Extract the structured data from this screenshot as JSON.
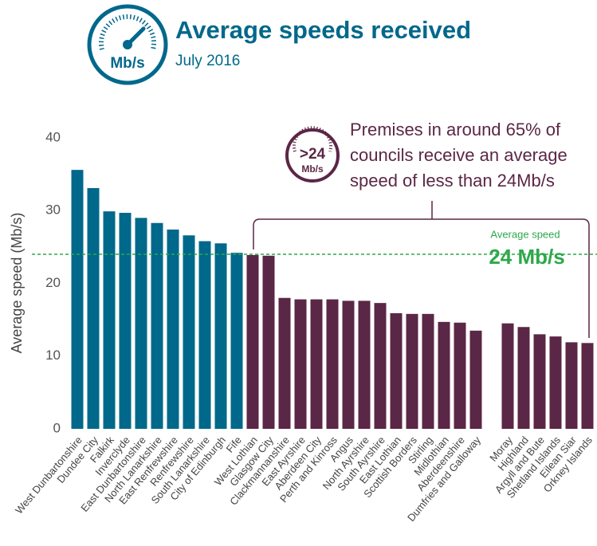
{
  "chart_data": {
    "type": "bar",
    "title": "Average speeds received",
    "subtitle": "July 2016",
    "header_icon_label": "Mb/s",
    "y_label": "Average speed (Mb/s)",
    "categories": [
      "West Dunbartonshire",
      "Dundee City",
      "Falkirk",
      "Inverclyde",
      "East Dunbartonshire",
      "North Lanarkshire",
      "East Renfrewshire",
      "Renfrewshire",
      "South Lanarkshire",
      "City of Edinburgh",
      "Fife",
      "West Lothian",
      "Glasgow City",
      "Clackmannanshire",
      "East Ayrshire",
      "Aberdeen City",
      "Perth and Kinross",
      "Angus",
      "North Ayrshire",
      "South Ayrshire",
      "East Lothian",
      "Scottish Borders",
      "Stirling",
      "Midlothian",
      "Aberdeenshire",
      "Dumfries and Galloway",
      null,
      "Moray",
      "Highland",
      "Argyll and Bute",
      "Shetland Islands",
      "Eilean Siar",
      "Orkney Islands"
    ],
    "values": [
      35.6,
      33.1,
      29.9,
      29.7,
      29.0,
      28.3,
      27.4,
      26.6,
      25.8,
      25.5,
      24.2,
      23.9,
      23.8,
      18.0,
      17.8,
      17.8,
      17.8,
      17.6,
      17.6,
      17.3,
      15.9,
      15.8,
      15.8,
      14.7,
      14.6,
      13.5,
      null,
      14.5,
      14.0,
      13.0,
      12.7,
      11.9,
      11.8
    ],
    "colors": {
      "above": "#00688b",
      "below": "#5b2746"
    },
    "ylim": [
      0,
      40
    ],
    "yticks": [
      0,
      10,
      20,
      30,
      40
    ],
    "grid": false,
    "reference_line": {
      "value": 24,
      "label": "Average speed",
      "value_label": "24 Mb/s",
      "color": "#2ea84a"
    },
    "annotation": {
      "lines": [
        "Premises in around 65% of",
        "councils receive an average",
        "speed of less than 24Mb/s"
      ],
      "icon_value": ">24",
      "icon_unit": "Mb/s"
    }
  }
}
